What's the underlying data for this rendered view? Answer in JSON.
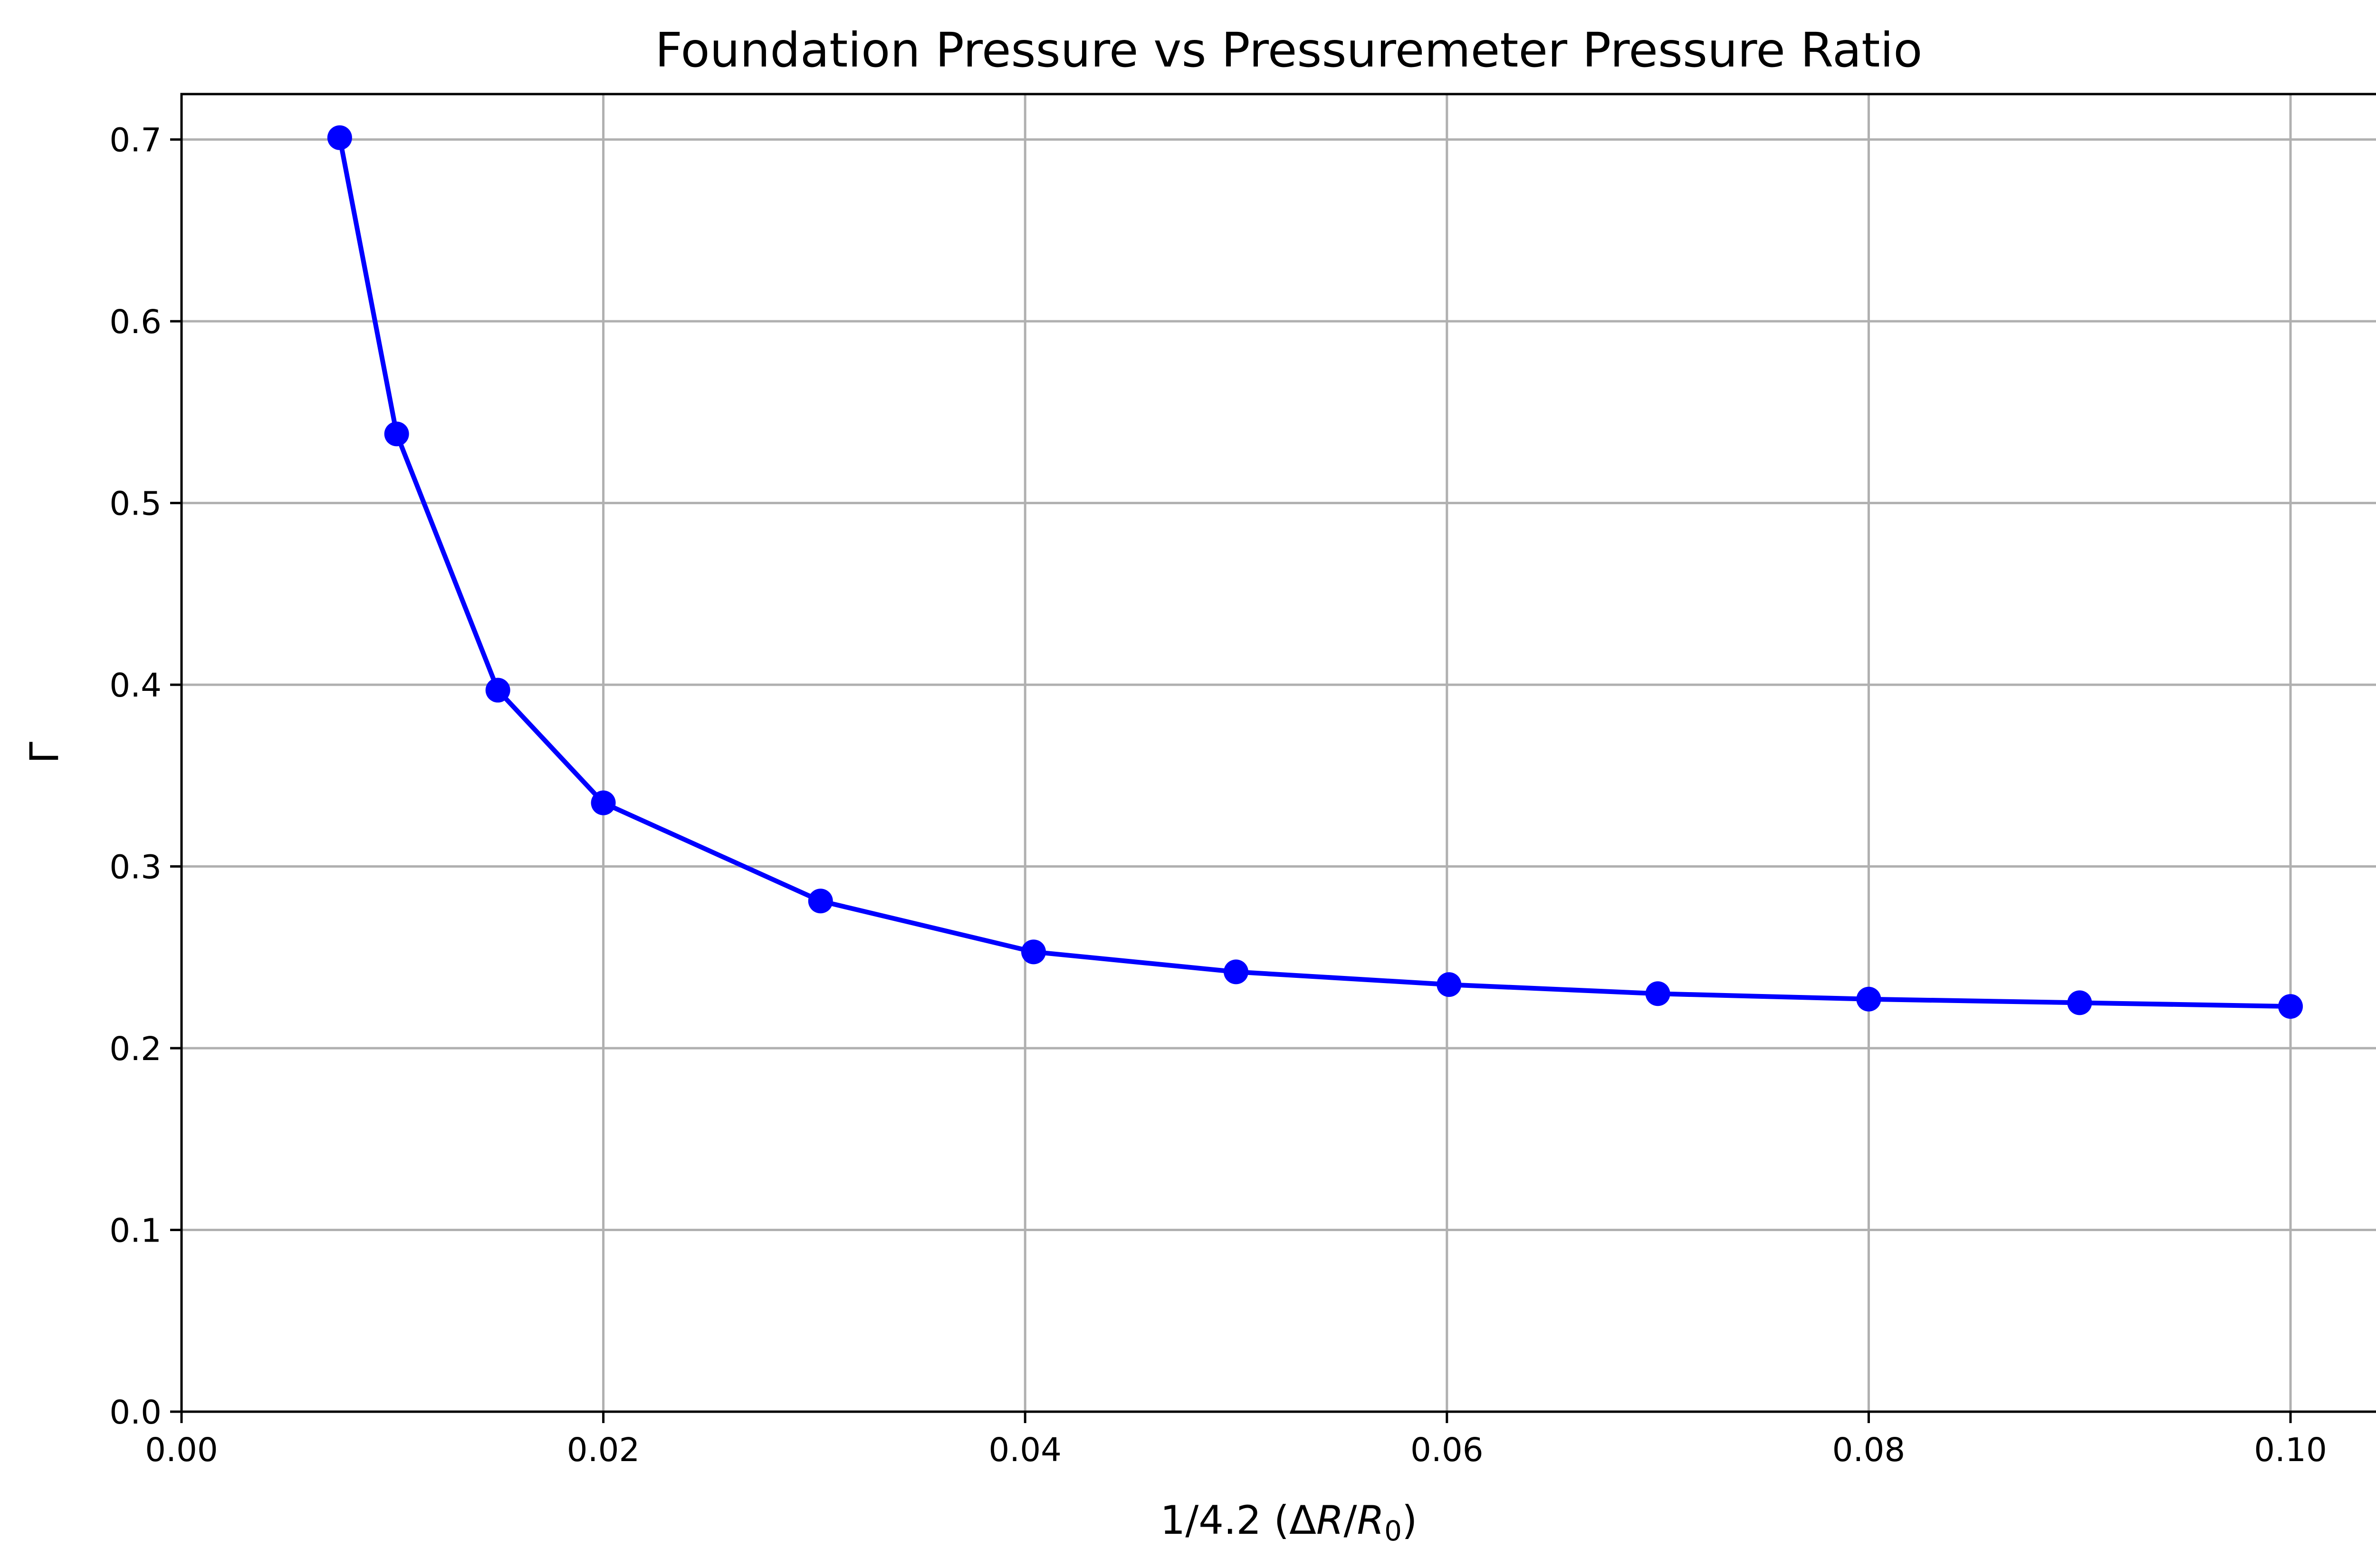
{
  "chart_data": {
    "type": "line",
    "title": "Foundation Pressure vs Pressuremeter Pressure Ratio",
    "xlabel": "1/4.2 (ΔR/R₀)",
    "xlabel_parts": {
      "pre": "1/4.2 (Δ",
      "r1": "R",
      "slash": "/",
      "r2": "R",
      "sub": "0",
      "post": ")"
    },
    "ylabel": "Γ",
    "xlim": [
      0.0,
      0.105
    ],
    "ylim": [
      0.0,
      0.725
    ],
    "xticks": [
      0.0,
      0.02,
      0.04,
      0.06,
      0.08,
      0.1
    ],
    "xtick_labels": [
      "0.00",
      "0.02",
      "0.04",
      "0.06",
      "0.08",
      "0.10"
    ],
    "yticks": [
      0.0,
      0.1,
      0.2,
      0.3,
      0.4,
      0.5,
      0.6,
      0.7
    ],
    "ytick_labels": [
      "0.0",
      "0.1",
      "0.2",
      "0.3",
      "0.4",
      "0.5",
      "0.6",
      "0.7"
    ],
    "grid": true,
    "series": [
      {
        "color": "#0000ff",
        "marker": "circle",
        "x": [
          0.0075,
          0.0102,
          0.015,
          0.02,
          0.0303,
          0.0404,
          0.05,
          0.0601,
          0.07,
          0.08,
          0.09,
          0.1
        ],
        "y": [
          0.701,
          0.538,
          0.397,
          0.335,
          0.281,
          0.253,
          0.242,
          0.235,
          0.23,
          0.227,
          0.225,
          0.223
        ]
      }
    ]
  }
}
